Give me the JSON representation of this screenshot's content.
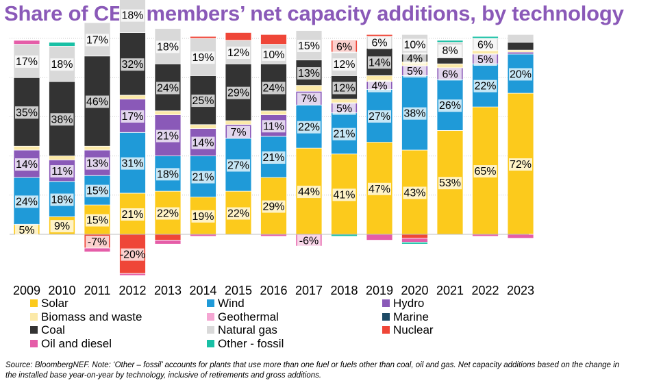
{
  "title": "Share of CEM members’ net capacity additions, by technology",
  "source": "Source: BloombergNEF. Note: ‘Other – fossil’ accounts for plants that use more than one fuel or fuels other than coal, oil and gas. Net capacity additions based on the change in the installed base year-on-year by technology, inclusive of retirements and gross additions.",
  "chart_data": {
    "type": "bar",
    "stacked": true,
    "unit": "%",
    "categories": [
      "2009",
      "2010",
      "2011",
      "2012",
      "2013",
      "2014",
      "2015",
      "2016",
      "2017",
      "2018",
      "2019",
      "2020",
      "2021",
      "2022",
      "2023"
    ],
    "series": [
      {
        "name": "Solar",
        "color": "#fcca1c",
        "values": [
          5,
          9,
          15,
          21,
          22,
          19,
          22,
          29,
          44,
          41,
          47,
          43,
          53,
          65,
          72
        ],
        "labels": [
          "5%",
          "9%",
          "15%",
          "21%",
          "22%",
          "19%",
          "22%",
          "29%",
          "44%",
          "41%",
          "47%",
          "43%",
          "53%",
          "65%",
          "72%"
        ]
      },
      {
        "name": "Wind",
        "color": "#1f9ad8",
        "values": [
          24,
          18,
          15,
          31,
          18,
          21,
          27,
          21,
          22,
          21,
          27,
          38,
          26,
          22,
          20
        ],
        "labels": [
          "24%",
          "18%",
          "15%",
          "31%",
          "18%",
          "21%",
          "27%",
          "21%",
          "22%",
          "21%",
          "27%",
          "38%",
          "26%",
          "22%",
          "20%"
        ]
      },
      {
        "name": "Hydro",
        "color": "#8a59b8",
        "values": [
          14,
          11,
          13,
          17,
          21,
          14,
          7,
          11,
          7,
          5,
          4,
          5,
          6,
          5,
          1
        ],
        "labels": [
          "14%",
          "11%",
          "13%",
          "17%",
          "21%",
          "14%",
          "7%",
          "11%",
          "7%",
          "5%",
          "4%",
          "5%",
          "6%",
          "5%",
          ""
        ]
      },
      {
        "name": "Biomass and waste",
        "color": "#fbe9a8",
        "values": [
          2,
          2,
          2,
          2,
          2,
          2,
          2,
          2,
          3,
          2,
          3,
          2,
          2,
          2,
          1
        ],
        "labels": [
          "",
          "",
          "",
          "",
          "",
          "",
          "",
          "",
          "",
          "",
          "",
          "",
          "",
          "",
          ""
        ]
      },
      {
        "name": "Geothermal",
        "color": "#f5a6d3",
        "values": [
          0,
          0,
          0,
          0,
          0,
          0,
          0,
          0,
          0,
          0,
          0,
          0,
          0,
          0,
          0
        ],
        "labels": [
          "",
          "",
          "",
          "",
          "",
          "",
          "",
          "",
          "",
          "",
          "",
          "",
          "",
          "",
          ""
        ]
      },
      {
        "name": "Marine",
        "color": "#1d4a66",
        "values": [
          0,
          0,
          0,
          0,
          0,
          0,
          0,
          0,
          0,
          0,
          0,
          0,
          0,
          0,
          0
        ],
        "labels": [
          "",
          "",
          "",
          "",
          "",
          "",
          "",
          "",
          "",
          "",
          "",
          "",
          "",
          "",
          ""
        ]
      },
      {
        "name": "Coal",
        "color": "#333333",
        "values": [
          35,
          38,
          46,
          32,
          24,
          25,
          29,
          24,
          13,
          12,
          14,
          4,
          3,
          0,
          4
        ],
        "labels": [
          "35%",
          "38%",
          "46%",
          "32%",
          "24%",
          "25%",
          "29%",
          "24%",
          "13%",
          "12%",
          "14%",
          "4%",
          "",
          "",
          ""
        ]
      },
      {
        "name": "Natural gas",
        "color": "#d9d9d9",
        "values": [
          17,
          18,
          17,
          18,
          18,
          19,
          12,
          10,
          15,
          12,
          6,
          10,
          8,
          6,
          4
        ],
        "labels": [
          "17%",
          "18%",
          "17%",
          "18%",
          "18%",
          "19%",
          "12%",
          "10%",
          "15%",
          "12%",
          "6%",
          "10%",
          "8%",
          "6%",
          ""
        ]
      },
      {
        "name": "Nuclear",
        "color": "#ef4638",
        "values": [
          0,
          0,
          -7,
          -20,
          -3,
          1,
          4,
          5,
          0,
          6,
          1,
          -2,
          0,
          0,
          0
        ],
        "labels": [
          "",
          "",
          "-7%",
          "-20%",
          "",
          "",
          "",
          "",
          "",
          "6%",
          "",
          "",
          "",
          "",
          ""
        ]
      },
      {
        "name": "Oil and diesel",
        "color": "#e55da8",
        "values": [
          2,
          0,
          -2,
          -1,
          -2,
          -1,
          0,
          -1,
          -6,
          0,
          -3,
          -2,
          0,
          -1,
          -2
        ],
        "labels": [
          "",
          "",
          "",
          "",
          "",
          "",
          "",
          "",
          "-6%",
          "",
          "",
          "",
          "",
          "",
          ""
        ]
      },
      {
        "name": "Other - fossil",
        "color": "#19c0a5",
        "values": [
          0,
          2,
          0,
          0,
          0,
          0,
          0,
          0,
          0,
          -1,
          0,
          -1,
          1,
          1,
          0
        ],
        "labels": [
          "",
          "",
          "",
          "",
          "",
          "",
          "",
          "",
          "",
          "",
          "",
          "",
          "",
          "",
          ""
        ]
      }
    ]
  }
}
